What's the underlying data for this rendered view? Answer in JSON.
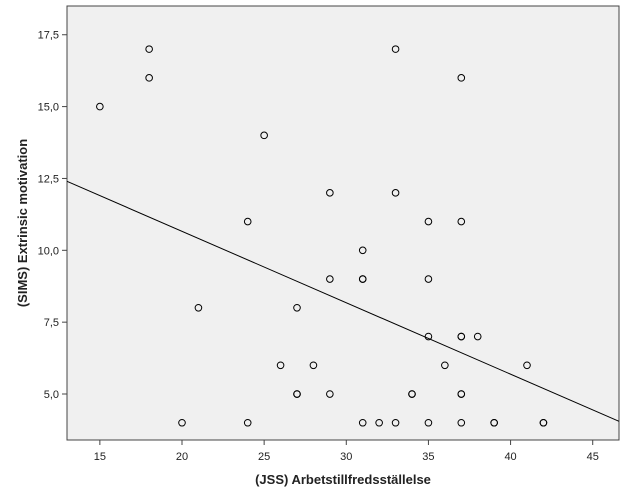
{
  "chart_data": {
    "type": "scatter",
    "title": "",
    "xlabel": "(JSS) Arbetstillfredsställelse",
    "ylabel": "(SIMS) Extrinsic motivation",
    "xlim": [
      13,
      46.6
    ],
    "ylim": [
      3.4,
      18.5
    ],
    "xticks": [
      15,
      20,
      25,
      30,
      35,
      40,
      45
    ],
    "yticks": [
      5.0,
      7.5,
      10.0,
      12.5,
      15.0,
      17.5
    ],
    "xtick_labels": [
      "15",
      "20",
      "25",
      "30",
      "35",
      "40",
      "45"
    ],
    "ytick_labels": [
      "5,0",
      "7,5",
      "10,0",
      "12,5",
      "15,0",
      "17,5"
    ],
    "grid": false,
    "plot_background": "#f0f0f0",
    "marker_color": "#000000",
    "points": [
      {
        "x": 15,
        "y": 15
      },
      {
        "x": 18,
        "y": 17
      },
      {
        "x": 18,
        "y": 16
      },
      {
        "x": 20,
        "y": 4
      },
      {
        "x": 21,
        "y": 8
      },
      {
        "x": 24,
        "y": 11
      },
      {
        "x": 24,
        "y": 4
      },
      {
        "x": 25,
        "y": 14
      },
      {
        "x": 26,
        "y": 6
      },
      {
        "x": 27,
        "y": 8
      },
      {
        "x": 27,
        "y": 5
      },
      {
        "x": 27,
        "y": 5
      },
      {
        "x": 28,
        "y": 6
      },
      {
        "x": 29,
        "y": 12
      },
      {
        "x": 29,
        "y": 9
      },
      {
        "x": 29,
        "y": 5
      },
      {
        "x": 31,
        "y": 10
      },
      {
        "x": 31,
        "y": 9
      },
      {
        "x": 31,
        "y": 9
      },
      {
        "x": 31,
        "y": 4
      },
      {
        "x": 32,
        "y": 4
      },
      {
        "x": 33,
        "y": 17
      },
      {
        "x": 33,
        "y": 12
      },
      {
        "x": 33,
        "y": 4
      },
      {
        "x": 34,
        "y": 5
      },
      {
        "x": 34,
        "y": 5
      },
      {
        "x": 35,
        "y": 11
      },
      {
        "x": 35,
        "y": 9
      },
      {
        "x": 35,
        "y": 7
      },
      {
        "x": 35,
        "y": 4
      },
      {
        "x": 36,
        "y": 6
      },
      {
        "x": 37,
        "y": 16
      },
      {
        "x": 37,
        "y": 11
      },
      {
        "x": 37,
        "y": 7
      },
      {
        "x": 37,
        "y": 7
      },
      {
        "x": 37,
        "y": 5
      },
      {
        "x": 37,
        "y": 5
      },
      {
        "x": 37,
        "y": 4
      },
      {
        "x": 38,
        "y": 7
      },
      {
        "x": 39,
        "y": 4
      },
      {
        "x": 39,
        "y": 4
      },
      {
        "x": 41,
        "y": 6
      },
      {
        "x": 42,
        "y": 4
      },
      {
        "x": 42,
        "y": 4
      }
    ],
    "fit_line": {
      "x": [
        13,
        46.6
      ],
      "y": [
        12.4,
        4.05
      ]
    }
  }
}
